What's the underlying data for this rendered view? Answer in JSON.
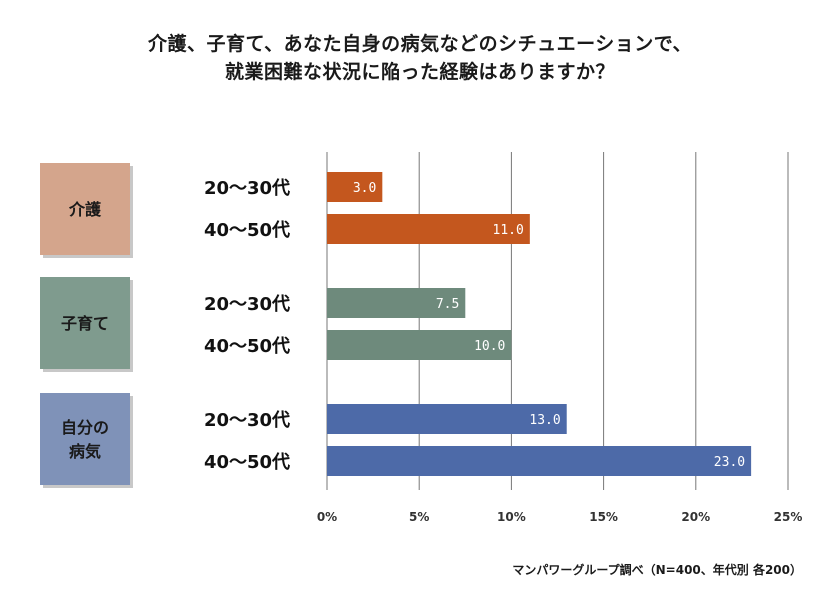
{
  "title_line1": "介護、子育て、あなた自身の病気などのシチュエーションで、",
  "title_line2": "就業困難な状況に陥った経験はありますか？",
  "source": "マンパワーグループ調べ（N=400、年代別 各200）",
  "colors": {
    "kaigo_box": "#d4a58c",
    "kaigo_bar": "#c4571e",
    "kosodate_box": "#7f9b8e",
    "kosodate_bar": "#6e8a7c",
    "byoki_box": "#7f92b8",
    "byoki_bar": "#4d6aa8",
    "grid": "#777777"
  },
  "chart_data": {
    "type": "bar",
    "orientation": "horizontal",
    "title": "介護、子育て、あなた自身の病気などのシチュエーションで、就業困難な状況に陥った経験はありますか？",
    "xlim": [
      0,
      25
    ],
    "x_ticks": [
      "0%",
      "5%",
      "10%",
      "15%",
      "20%",
      "25%"
    ],
    "grid": true,
    "groups": [
      {
        "label": "介護",
        "box_color_key": "kaigo_box",
        "bar_color_key": "kaigo_bar",
        "bars": [
          {
            "category": "20〜30代",
            "value": 3.0,
            "label": "3.0"
          },
          {
            "category": "40〜50代",
            "value": 11.0,
            "label": "11.0"
          }
        ]
      },
      {
        "label": "子育て",
        "box_color_key": "kosodate_box",
        "bar_color_key": "kosodate_bar",
        "bars": [
          {
            "category": "20〜30代",
            "value": 7.5,
            "label": "7.5"
          },
          {
            "category": "40〜50代",
            "value": 10.0,
            "label": "10.0"
          }
        ]
      },
      {
        "label": "自分の病気",
        "label_lines": [
          "自分の",
          "病気"
        ],
        "box_color_key": "byoki_box",
        "bar_color_key": "byoki_bar",
        "bars": [
          {
            "category": "20〜30代",
            "value": 13.0,
            "label": "13.0"
          },
          {
            "category": "40〜50代",
            "value": 23.0,
            "label": "23.0"
          }
        ]
      }
    ]
  }
}
